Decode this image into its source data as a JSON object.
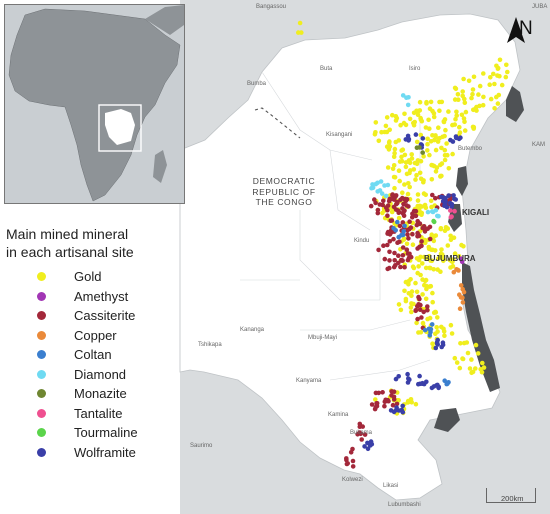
{
  "colors": {
    "background_land": "#d9dcde",
    "drc_land": "#ffffff",
    "lake": "#4f5255",
    "inset_ocean": "#c9ced2",
    "inset_land": "#8e9397"
  },
  "legend": {
    "title_line1": "Main mined mineral",
    "title_line2": "in each artisanal site",
    "items": [
      {
        "label": "Gold",
        "color": "#f0ee1e"
      },
      {
        "label": "Amethyst",
        "color": "#a236b5"
      },
      {
        "label": "Cassiterite",
        "color": "#a3283a"
      },
      {
        "label": "Copper",
        "color": "#ea8a3a"
      },
      {
        "label": "Coltan",
        "color": "#3b7fcf"
      },
      {
        "label": "Diamond",
        "color": "#6fdaf2"
      },
      {
        "label": "Monazite",
        "color": "#6f8631"
      },
      {
        "label": "Tantalite",
        "color": "#ef5090"
      },
      {
        "label": "Tourmaline",
        "color": "#5bd44b"
      },
      {
        "label": "Wolframite",
        "color": "#3a3fa8"
      }
    ]
  },
  "labels": {
    "country": [
      "DEMOCRATIC",
      "REPUBLIC OF",
      "THE CONGO"
    ],
    "cities_major": [
      "KIGALI",
      "BUJUMBURA"
    ],
    "places": [
      "Bangassou",
      "Buta",
      "Isiro",
      "Bumba",
      "Kisangani",
      "Butembo",
      "Kindu",
      "Kananga",
      "Mbuji-Mayi",
      "Tshikapa",
      "Kanyama",
      "Kamina",
      "Bukama",
      "Saurimo",
      "Kolwezi",
      "Likasi",
      "Lubumbashi",
      "JUBA",
      "KAM"
    ]
  },
  "north_arrow": "N",
  "scale": "200km",
  "inset_region": "locator-map-africa"
}
